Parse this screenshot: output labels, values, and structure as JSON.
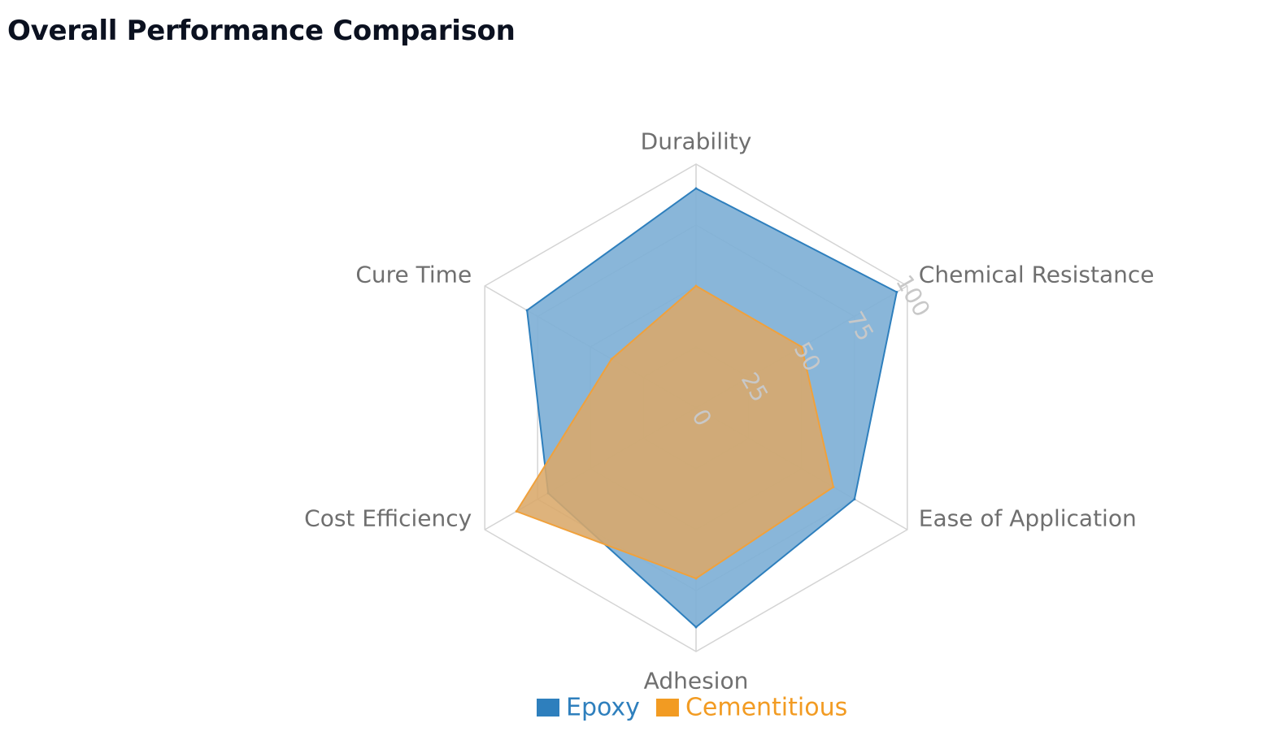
{
  "page": {
    "title": "Overall Performance Comparison"
  },
  "chart_data": {
    "type": "radar",
    "categories": [
      "Durability",
      "Chemical Resistance",
      "Ease of Application",
      "Adhesion",
      "Cost Efficiency",
      "Cure Time"
    ],
    "ticks": [
      "0",
      "25",
      "50",
      "75",
      "100"
    ],
    "range": [
      0,
      100
    ],
    "grid": true,
    "legend_position": "bottom",
    "series": [
      {
        "name": "Epoxy",
        "values": [
          90,
          95,
          75,
          90,
          70,
          80
        ],
        "stroke": "#2e7fbd",
        "fill": "#7fb0d6",
        "legend_color": "#2e7fbd"
      },
      {
        "name": "Cementitious",
        "values": [
          50,
          50,
          65,
          70,
          85,
          40
        ],
        "stroke": "#f0a13c",
        "fill": "#d9a86a",
        "legend_color": "#f29b22"
      }
    ]
  }
}
